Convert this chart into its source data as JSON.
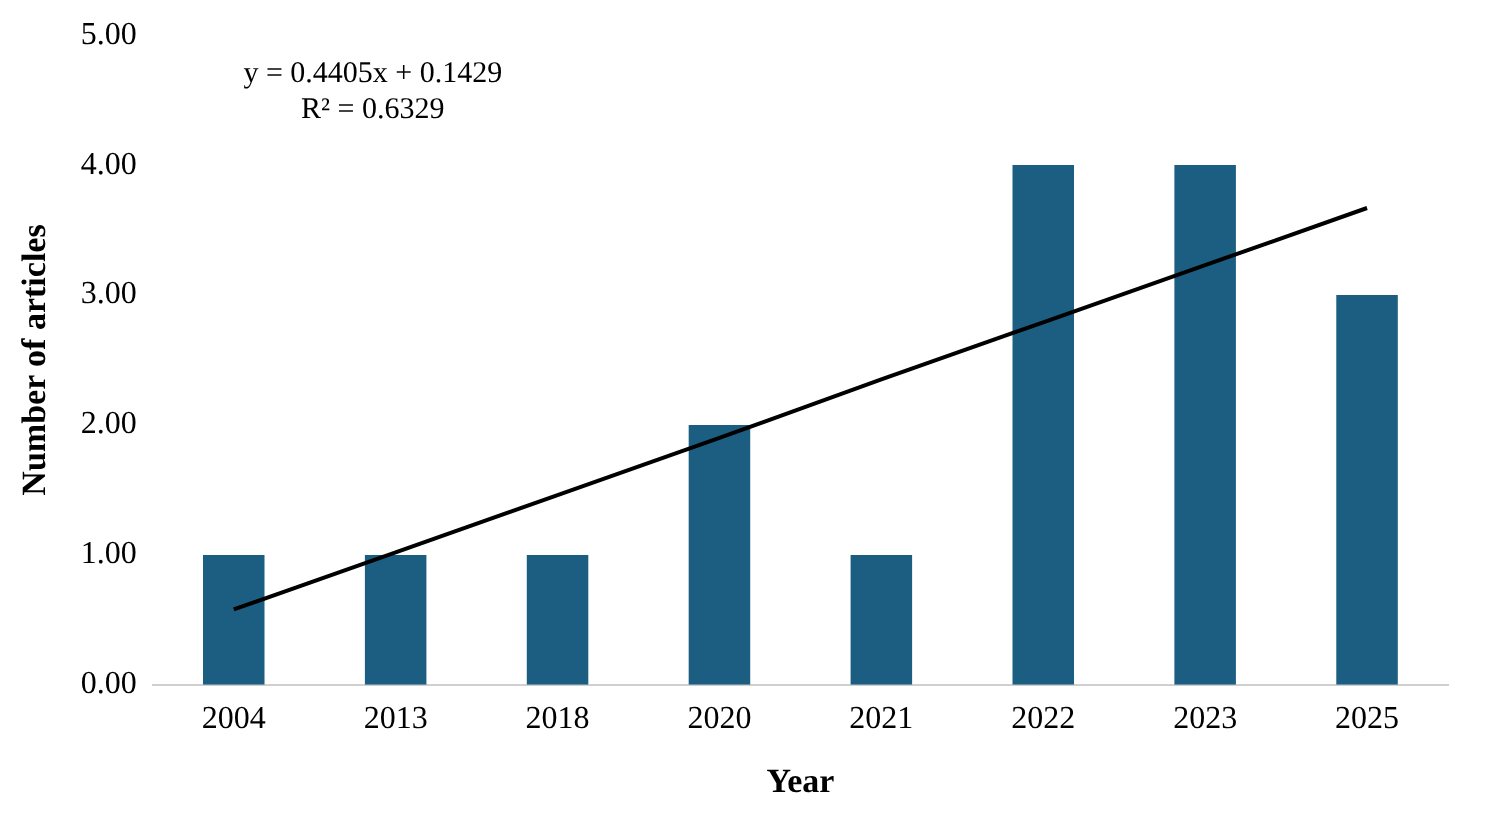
{
  "chart_data": {
    "type": "bar",
    "xlabel": "Year",
    "ylabel": "Number of articles",
    "categories": [
      "2004",
      "2013",
      "2018",
      "2020",
      "2021",
      "2022",
      "2023",
      "2025"
    ],
    "series": [
      {
        "color": "#1b5e82",
        "values": [
          1,
          1,
          1,
          2,
          1,
          4,
          4,
          3
        ]
      },
      {
        "type": "line",
        "color": "#000000",
        "values": [
          0.58,
          1.02,
          1.46,
          1.9,
          2.35,
          2.79,
          3.23,
          3.67
        ]
      }
    ],
    "ylim": [
      0,
      5
    ],
    "yticks": [
      {
        "value": 0,
        "label": "0.00"
      },
      {
        "value": 1,
        "label": "1.00"
      },
      {
        "value": 2,
        "label": "2.00"
      },
      {
        "value": 3,
        "label": "3.00"
      },
      {
        "value": 4,
        "label": "4.00"
      },
      {
        "value": 5,
        "label": "5.00"
      }
    ],
    "grid": false,
    "legend": false,
    "annotations": [
      "y = 0.4405x + 0.1429",
      "R² = 0.6329"
    ]
  }
}
